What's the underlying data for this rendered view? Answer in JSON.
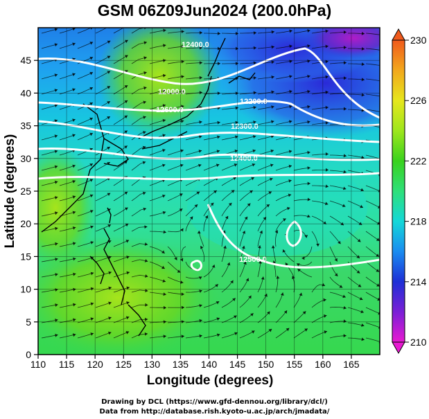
{
  "title": "GSM 06Z09Jun2024 (200.0hPa)",
  "x_axis": {
    "label": "Longitude (degrees)",
    "range": [
      110,
      170
    ],
    "ticks": [
      "110",
      "115",
      "120",
      "125",
      "130",
      "135",
      "140",
      "145",
      "150",
      "155",
      "160",
      "165"
    ]
  },
  "y_axis": {
    "label": "Latitude  (degrees)",
    "range": [
      0,
      50
    ],
    "ticks": [
      "0",
      "5",
      "10",
      "15",
      "20",
      "25",
      "30",
      "35",
      "40",
      "45"
    ]
  },
  "colorbar": {
    "min": 210,
    "max": 230,
    "ticks": [
      "210",
      "214",
      "218",
      "222",
      "226",
      "230"
    ],
    "colors": [
      "#e81ad2",
      "#7a1fd6",
      "#1e2fd6",
      "#1a8cf0",
      "#14d8d8",
      "#2ee07a",
      "#3ad21e",
      "#9ee61c",
      "#e6e61c",
      "#f2a81c",
      "#f05a1c"
    ]
  },
  "contours": {
    "labels": [
      "12000.0",
      "12200.0",
      "12300.0",
      "12400.0",
      "12500.0",
      "12600.0",
      "12400.0"
    ],
    "color": "#ffffff"
  },
  "credits": {
    "line1": "Drawing by DCL (https://www.gfd-dennou.org/library/dcl/)",
    "line2": "Data from http://database.rish.kyoto-u.ac.jp/arch/jmadata/"
  }
}
